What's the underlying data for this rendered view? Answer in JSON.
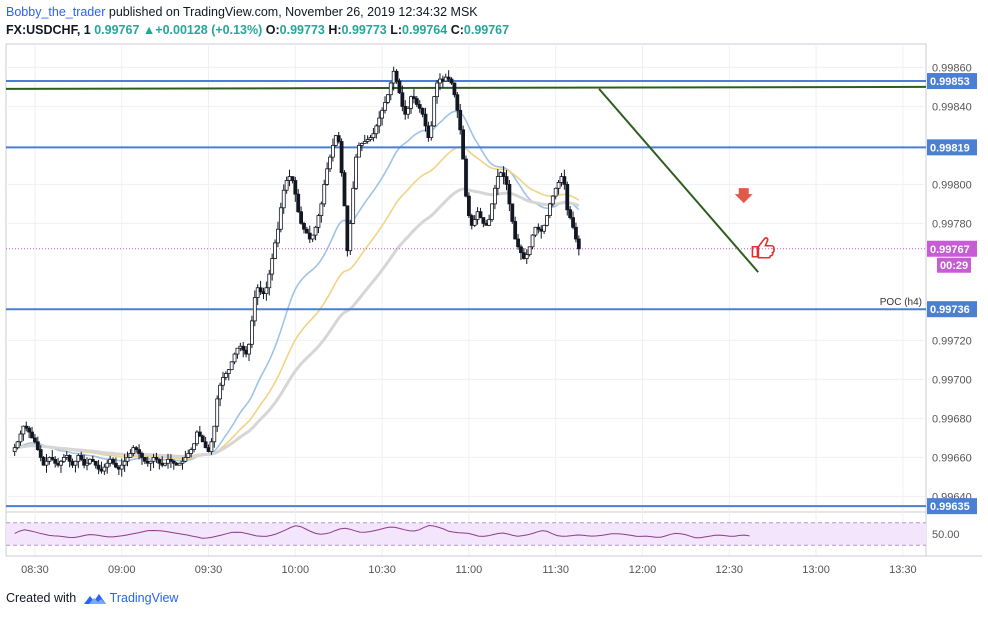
{
  "header": {
    "author": "Bobby_the_trader",
    "published": "published on TradingView.com, November 26, 2019 12:34:32 MSK",
    "symbol": "FX:USDCHF, 1",
    "last": "0.99767",
    "change": "+0.00128 (+0.13%)",
    "o_label": "O:",
    "o_value": "0.99773",
    "h_label": "H:",
    "h_value": "0.99773",
    "l_label": "L:",
    "l_value": "0.99764",
    "c_label": "C:",
    "c_value": "0.99767"
  },
  "footer": {
    "created_with": "Created with",
    "brand": "TradingView"
  },
  "colors": {
    "level_line": "#4a7fd4",
    "trendline": "#2e5e1e",
    "ma_fast": "#9fc3e8",
    "ma_mid": "#f2d384",
    "ma_slow": "#d6d6d6",
    "candle_body_up": "#ffffff",
    "candle_border": "#131722",
    "rsi_band": "#f3e5fb",
    "rsi_line": "#8e3b8e",
    "price_badge": "#c85bd6",
    "signal_arrow": "#e05a4a",
    "thumb_icon": "#e03131"
  },
  "icons": [
    "down-arrow-signal-icon",
    "thumbs-up-icon",
    "tradingview-logo-icon"
  ],
  "chart_data": {
    "type": "candlestick",
    "timeframe": "1",
    "symbol": "USDCHF",
    "x_ticks": [
      "08:30",
      "09:00",
      "09:30",
      "10:00",
      "10:30",
      "11:00",
      "11:30",
      "12:00",
      "12:30",
      "13:00",
      "13:30"
    ],
    "y_ticks": [
      "0.99860",
      "0.99840",
      "0.99800",
      "0.99780",
      "0.99720",
      "0.99700",
      "0.99680",
      "0.99660",
      "0.99640"
    ],
    "ylim": [
      0.99632,
      0.99872
    ],
    "x_start": "08:20",
    "x_end": "13:38",
    "minutes_per_candle": 1,
    "closes": [
      0.99665,
      0.99668,
      0.99672,
      0.99676,
      0.99675,
      0.99673,
      0.9967,
      0.99668,
      0.99664,
      0.9966,
      0.99656,
      0.99658,
      0.9966,
      0.99659,
      0.99657,
      0.99656,
      0.99658,
      0.9966,
      0.99661,
      0.99658,
      0.99656,
      0.99658,
      0.99661,
      0.99659,
      0.99656,
      0.99657,
      0.99659,
      0.99658,
      0.99656,
      0.99654,
      0.99653,
      0.99655,
      0.99657,
      0.99659,
      0.99657,
      0.99655,
      0.99654,
      0.99656,
      0.99658,
      0.9966,
      0.99662,
      0.99665,
      0.99664,
      0.99662,
      0.9966,
      0.99658,
      0.99657,
      0.99658,
      0.9966,
      0.99659,
      0.99657,
      0.99656,
      0.99657,
      0.99659,
      0.99658,
      0.99657,
      0.99656,
      0.99657,
      0.99658,
      0.9966,
      0.99662,
      0.99664,
      0.99667,
      0.99673,
      0.99671,
      0.99668,
      0.99665,
      0.99663,
      0.99668,
      0.99676,
      0.9969,
      0.99697,
      0.99701,
      0.99703,
      0.99705,
      0.99709,
      0.99713,
      0.99716,
      0.99717,
      0.99715,
      0.99713,
      0.99718,
      0.9973,
      0.99742,
      0.99747,
      0.99745,
      0.99744,
      0.99747,
      0.99754,
      0.99762,
      0.9977,
      0.99777,
      0.99788,
      0.99797,
      0.99802,
      0.99804,
      0.99802,
      0.99795,
      0.99786,
      0.9978,
      0.99777,
      0.99775,
      0.99772,
      0.99774,
      0.99778,
      0.99784,
      0.9979,
      0.998,
      0.99808,
      0.99814,
      0.9982,
      0.99825,
      0.99822,
      0.99806,
      0.99789,
      0.99766,
      0.9978,
      0.99798,
      0.99814,
      0.9982,
      0.99821,
      0.99822,
      0.99823,
      0.99824,
      0.99826,
      0.9983,
      0.99834,
      0.99838,
      0.99842,
      0.99846,
      0.99852,
      0.99858,
      0.99853,
      0.99847,
      0.9984,
      0.99836,
      0.99839,
      0.99845,
      0.99844,
      0.99841,
      0.99839,
      0.99836,
      0.9983,
      0.99824,
      0.9983,
      0.99845,
      0.99852,
      0.99854,
      0.99853,
      0.99855,
      0.99854,
      0.99852,
      0.99846,
      0.99838,
      0.99828,
      0.99813,
      0.99794,
      0.99784,
      0.99779,
      0.99782,
      0.99786,
      0.99783,
      0.9978,
      0.99779,
      0.99782,
      0.9979,
      0.99798,
      0.99804,
      0.99806,
      0.99804,
      0.998,
      0.9979,
      0.99781,
      0.99772,
      0.99768,
      0.99765,
      0.99762,
      0.99764,
      0.99768,
      0.99774,
      0.99778,
      0.99777,
      0.99776,
      0.99779,
      0.99784,
      0.9979,
      0.99794,
      0.99798,
      0.99801,
      0.99804,
      0.998,
      0.99787,
      0.99783,
      0.99778,
      0.99772,
      0.99767
    ]
  },
  "horizontal_levels": [
    {
      "price": 0.99853,
      "label": "0.99853"
    },
    {
      "price": 0.99819,
      "label": "0.99819"
    },
    {
      "price": 0.99736,
      "label": "0.99736",
      "tag": "POC (h4)"
    },
    {
      "price": 0.99635,
      "label": "0.99635"
    }
  ],
  "current_price": {
    "label": "0.99767",
    "countdown": "00:29"
  },
  "trendlines": [
    {
      "from": {
        "time": "08:20",
        "price": 0.99849
      },
      "to": {
        "time": "13:38",
        "price": 0.9985
      }
    },
    {
      "from": {
        "time": "11:45",
        "price": 0.99849
      },
      "to": {
        "time": "12:40",
        "price": 0.99755
      }
    }
  ],
  "rsi": {
    "label": "50.00",
    "values": [
      50.4,
      51.8,
      52.6,
      52.0,
      51.4,
      50.5,
      49.8,
      49.1,
      48.8,
      48.7,
      48.3,
      47.9,
      47.8,
      48.3,
      49.0,
      49.6,
      49.5,
      49.1,
      48.6,
      48.2,
      48.2,
      48.6,
      49.0,
      49.5,
      50.2,
      50.7,
      51.4,
      52.1,
      52.2,
      52.1,
      51.9,
      51.4,
      50.9,
      50.4,
      49.9,
      49.4,
      48.7,
      48.1,
      47.4,
      47.5,
      48.0,
      48.7,
      49.4,
      50.2,
      51.0,
      51.1,
      51.0,
      50.3,
      49.6,
      48.8,
      48.6,
      48.5,
      49.1,
      50.0,
      51.3,
      52.6,
      54.1,
      55.1,
      54.6,
      53.1,
      51.6,
      50.4,
      49.9,
      50.1,
      50.8,
      52.1,
      53.2,
      53.6,
      53.0,
      52.0,
      51.2,
      51.1,
      51.5,
      52.1,
      52.8,
      53.7,
      54.3,
      54.2,
      53.5,
      52.7,
      52.0,
      51.9,
      52.6,
      54.1,
      55.3,
      55.0,
      54.1,
      53.1,
      51.7,
      51.2,
      50.8,
      50.6,
      50.4,
      49.6,
      48.7,
      48.5,
      48.9,
      49.6,
      50.3,
      50.6,
      50.0,
      49.1,
      48.6,
      49.0,
      49.5,
      50.3,
      51.4,
      52.1,
      51.6,
      50.2,
      49.0,
      48.6,
      48.7,
      49.0,
      49.4,
      49.3,
      48.9,
      48.7,
      48.8,
      49.1,
      49.6,
      50.2,
      50.2,
      50.0,
      49.6,
      49.1,
      48.6,
      48.5,
      48.7,
      48.4,
      48.0,
      48.0,
      48.8,
      49.8,
      50.4,
      50.1,
      49.6,
      48.6,
      47.7,
      47.7,
      48.2,
      48.7,
      49.2,
      49.3,
      49.0,
      48.6,
      48.6,
      49.1,
      49.3,
      48.8
    ]
  }
}
